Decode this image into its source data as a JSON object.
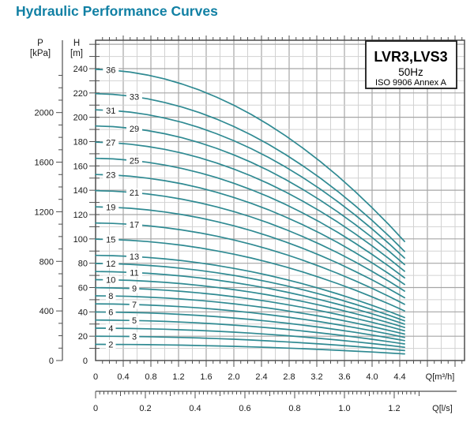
{
  "title": "Hydraulic Performance Curves",
  "chart_data": {
    "type": "line",
    "title": "Hydraulic Performance Curves",
    "legend": {
      "model": "LVR3,LVS3",
      "frequency": "50Hz",
      "standard": "ISO 9906 Annex A"
    },
    "x_axis_top": {
      "unit": "Q[m³/h]",
      "tick_labels": [
        0,
        0.4,
        0.8,
        1.2,
        1.6,
        2.0,
        2.4,
        2.8,
        3.2,
        3.6,
        4.0,
        4.4
      ],
      "range": [
        0,
        5.35
      ],
      "minor_tick_step": 0.1,
      "grid_minor_step": 0.2,
      "grid_major_step": 0.4
    },
    "x_axis_bottom": {
      "unit": "Q[l/s]",
      "tick_labels": [
        0,
        0.2,
        0.4,
        0.6,
        0.8,
        1.0,
        1.2
      ],
      "m3h_per_ls": 3.6,
      "minor_tick_step_ls": 0.0166667,
      "medium_tick_step_ls": 0.1,
      "major_tick_step_ls": 0.2,
      "tick_extent_ls": 1.3
    },
    "y_axis_h": {
      "name": "H",
      "unit": "[m]",
      "tick_labels": [
        0,
        20,
        40,
        60,
        80,
        100,
        120,
        140,
        160,
        180,
        200,
        220,
        240
      ],
      "range": [
        0,
        263
      ],
      "minor_tick_step": 10,
      "grid_minor_step": 10,
      "grid_major_step": 20
    },
    "y_axis_p": {
      "name": "P",
      "unit": "[kPa]",
      "tick_labels": [
        0,
        400,
        800,
        1200,
        1600,
        2000
      ],
      "minor_tick_step": 100,
      "tick_extent": 2300,
      "kpa_per_m": 9.81
    },
    "stages": [
      2,
      3,
      4,
      5,
      6,
      7,
      8,
      9,
      10,
      11,
      12,
      13,
      15,
      17,
      19,
      21,
      23,
      25,
      27,
      29,
      31,
      33,
      36
    ],
    "per_stage_head_curve": {
      "note": "head per stage h(q); curve for n stages is H = n * h(q)",
      "q_m3h": [
        0,
        0.25,
        0.5,
        0.75,
        1.0,
        1.25,
        1.5,
        1.75,
        2.0,
        2.25,
        2.5,
        2.75,
        3.0,
        3.25,
        3.5,
        3.75,
        4.0,
        4.25,
        4.47
      ],
      "h_m": [
        6.65,
        6.631,
        6.588,
        6.521,
        6.43,
        6.316,
        6.178,
        6.016,
        5.83,
        5.621,
        5.388,
        5.131,
        4.85,
        4.546,
        4.218,
        3.866,
        3.49,
        3.091,
        2.719
      ]
    },
    "label_columns": [
      {
        "q": 0.22,
        "stages": [
          36,
          31,
          27,
          23,
          19,
          15,
          12,
          10,
          8,
          6,
          4,
          2
        ]
      },
      {
        "q": 0.56,
        "stages": [
          33,
          29,
          25,
          21,
          17,
          13,
          11,
          9,
          7,
          5,
          3
        ]
      }
    ],
    "colors": {
      "curve": "#2f8a92",
      "title": "#1180a4",
      "grid_minor": "#d2d2d2",
      "grid_major": "#a6a6a6",
      "frame": "#4f4f4f",
      "text": "#1a1a1a"
    }
  }
}
